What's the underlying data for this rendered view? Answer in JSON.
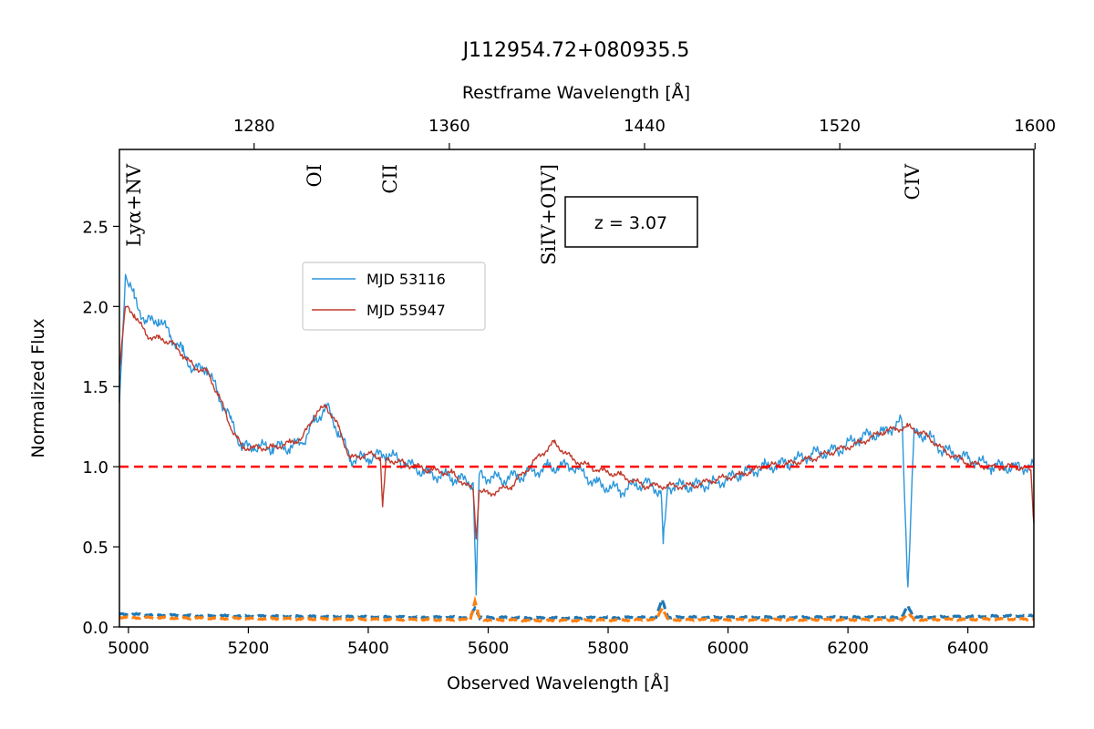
{
  "chart_data": {
    "type": "line",
    "title": "J112954.72+080935.5",
    "xlabel": "Observed Wavelength [Å]",
    "ylabel": "Normalized Flux",
    "top_xlabel": "Restframe Wavelength [Å]",
    "xlim": [
      4985,
      6510
    ],
    "ylim": [
      0.0,
      2.98
    ],
    "redshift": 3.07,
    "x_ticks": [
      "5000",
      "5200",
      "5400",
      "5600",
      "5800",
      "6000",
      "6200",
      "6400"
    ],
    "y_ticks": [
      "0.0",
      "0.5",
      "1.0",
      "1.5",
      "2.0",
      "2.5"
    ],
    "top_ticks": [
      "1280",
      "1360",
      "1440",
      "1520",
      "1600"
    ],
    "annotation": "z = 3.07",
    "reference_line": {
      "y": 1.0,
      "color": "#ff0000",
      "style": "dashed"
    },
    "line_labels": [
      {
        "label": "Lyα+NV",
        "rest": 1230
      },
      {
        "label": "OI",
        "rest": 1304
      },
      {
        "label": "CII",
        "rest": 1335
      },
      {
        "label": "SiIV+OIV]",
        "rest": 1400
      },
      {
        "label": "CIV",
        "rest": 1549
      }
    ],
    "legend_position": "upper-left (inside axes)",
    "series": [
      {
        "name": "MJD 53116",
        "color": "#2a96db",
        "x": [
          4985,
          4995,
          5010,
          5030,
          5050,
          5070,
          5090,
          5110,
          5130,
          5150,
          5170,
          5190,
          5210,
          5240,
          5270,
          5290,
          5310,
          5330,
          5350,
          5370,
          5400,
          5430,
          5460,
          5500,
          5540,
          5575,
          5580,
          5585,
          5620,
          5660,
          5700,
          5740,
          5780,
          5820,
          5860,
          5888,
          5892,
          5900,
          5940,
          5980,
          6020,
          6060,
          6100,
          6140,
          6180,
          6220,
          6260,
          6290,
          6300,
          6310,
          6330,
          6360,
          6400,
          6440,
          6480,
          6510
        ],
        "y": [
          1.4,
          2.2,
          2.05,
          1.9,
          1.92,
          1.82,
          1.72,
          1.6,
          1.62,
          1.45,
          1.3,
          1.12,
          1.12,
          1.12,
          1.12,
          1.15,
          1.28,
          1.38,
          1.22,
          1.05,
          1.05,
          1.08,
          1.02,
          0.96,
          0.93,
          0.9,
          0.2,
          0.95,
          0.92,
          0.95,
          1.0,
          1.0,
          0.9,
          0.85,
          0.9,
          0.85,
          0.52,
          0.88,
          0.88,
          0.9,
          0.95,
          1.0,
          1.02,
          1.08,
          1.1,
          1.18,
          1.22,
          1.28,
          0.25,
          1.2,
          1.2,
          1.1,
          1.05,
          1.0,
          1.0,
          1.0
        ],
        "noise_x": [
          4985,
          5100,
          5300,
          5500,
          5570,
          5578,
          5586,
          5700,
          5880,
          5890,
          5900,
          6100,
          6290,
          6300,
          6310,
          6510
        ],
        "noise_y": [
          0.08,
          0.07,
          0.065,
          0.06,
          0.06,
          0.12,
          0.06,
          0.055,
          0.06,
          0.17,
          0.06,
          0.06,
          0.06,
          0.13,
          0.06,
          0.07
        ]
      },
      {
        "name": "MJD 55947",
        "color": "#c0392b",
        "x": [
          4985,
          4995,
          5010,
          5030,
          5050,
          5070,
          5090,
          5110,
          5130,
          5150,
          5170,
          5190,
          5210,
          5240,
          5270,
          5290,
          5310,
          5330,
          5350,
          5370,
          5400,
          5420,
          5424,
          5430,
          5460,
          5500,
          5540,
          5575,
          5580,
          5585,
          5600,
          5640,
          5680,
          5710,
          5740,
          5780,
          5820,
          5860,
          5900,
          5940,
          5980,
          6020,
          6060,
          6100,
          6140,
          6180,
          6220,
          6260,
          6300,
          6330,
          6360,
          6400,
          6440,
          6480,
          6505,
          6510
        ],
        "y": [
          1.6,
          2.0,
          1.95,
          1.82,
          1.8,
          1.78,
          1.7,
          1.62,
          1.6,
          1.45,
          1.25,
          1.12,
          1.12,
          1.12,
          1.15,
          1.18,
          1.32,
          1.38,
          1.25,
          1.05,
          1.08,
          1.06,
          0.75,
          1.05,
          1.02,
          0.98,
          0.96,
          0.85,
          0.55,
          0.85,
          0.83,
          0.88,
          1.05,
          1.15,
          1.05,
          0.98,
          0.95,
          0.88,
          0.88,
          0.88,
          0.92,
          0.95,
          1.0,
          1.02,
          1.05,
          1.1,
          1.15,
          1.22,
          1.25,
          1.2,
          1.1,
          1.02,
          1.0,
          1.0,
          0.98,
          0.65
        ],
        "noise_x": [
          4985,
          5100,
          5300,
          5500,
          5570,
          5578,
          5586,
          5700,
          5880,
          5890,
          5900,
          6100,
          6290,
          6300,
          6310,
          6510
        ],
        "noise_y": [
          0.06,
          0.055,
          0.05,
          0.045,
          0.045,
          0.16,
          0.045,
          0.04,
          0.045,
          0.12,
          0.045,
          0.045,
          0.045,
          0.09,
          0.045,
          0.05
        ]
      }
    ],
    "noise_colors": [
      "#1f77b4",
      "#ff7f0e"
    ]
  }
}
